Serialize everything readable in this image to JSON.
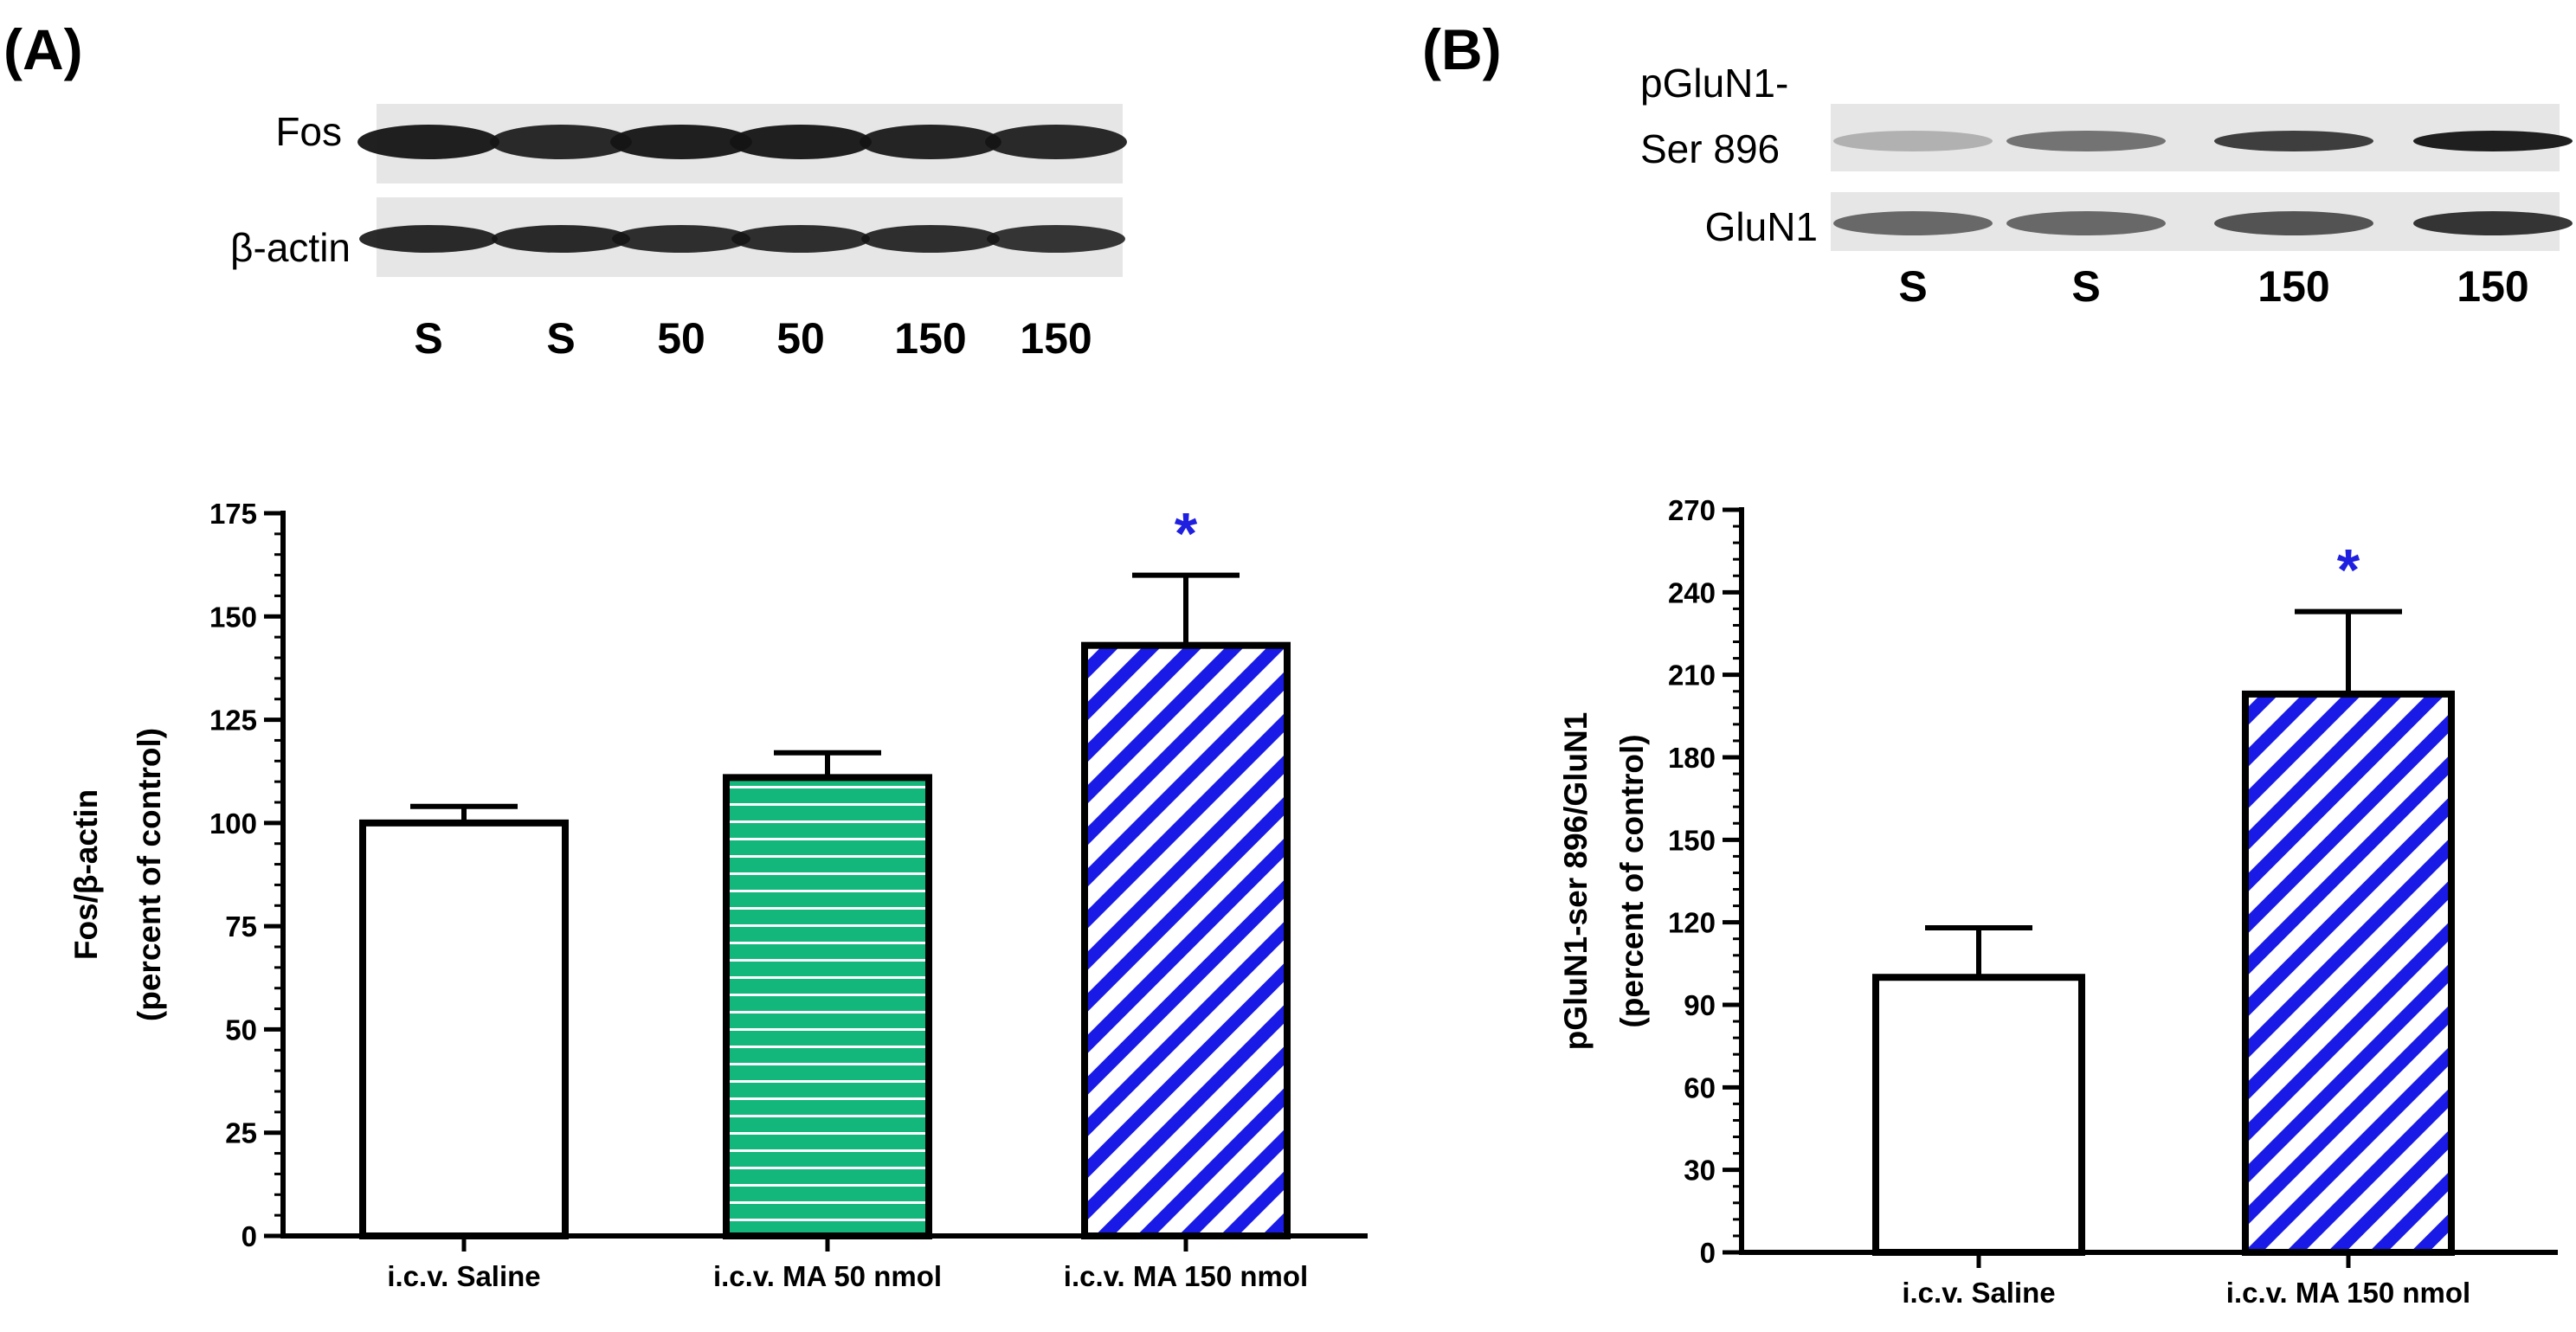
{
  "colors": {
    "axis": "#000000",
    "saline_fill": "#ffffff",
    "ma50_fill": "#13b77c",
    "ma50_stripe": "#ffffff",
    "ma150_fill": "#ffffff",
    "ma150_stripe": "#1a1ae6",
    "significance": "#1f1fe0",
    "blot_background": "#e6e6e6",
    "band": "#141414"
  },
  "panel_a": {
    "label": "(A)",
    "blot": {
      "rows": [
        {
          "label": "Fos",
          "icon": "fos-blot-row"
        },
        {
          "label": "β-actin",
          "icon": "beta-actin-blot-row"
        }
      ],
      "lanes": [
        "S",
        "S",
        "50",
        "50",
        "150",
        "150"
      ]
    }
  },
  "panel_b": {
    "label": "(B)",
    "blot": {
      "rows": [
        {
          "label_line1": "pGluN1-",
          "label_line2": "Ser 896",
          "icon": "pglun1-blot-row"
        },
        {
          "label": "GluN1",
          "icon": "glun1-blot-row"
        }
      ],
      "lanes": [
        "S",
        "S",
        "150",
        "150"
      ]
    }
  },
  "chart_data": [
    {
      "type": "bar",
      "title": "",
      "xlabel": "",
      "ylabel_line1": "Fos/β-actin",
      "ylabel_line2": "(percent of control)",
      "ylim": [
        0,
        175
      ],
      "yticks": [
        0,
        25,
        50,
        75,
        100,
        125,
        150,
        175
      ],
      "categories": [
        "i.c.v. Saline",
        "i.c.v. MA 50 nmol",
        "i.c.v. MA 150 nmol"
      ],
      "values": [
        100,
        111,
        143
      ],
      "errors": [
        4,
        6,
        17
      ],
      "fills": [
        "plain",
        "horizontal-stripes",
        "diagonal-stripes"
      ],
      "significance": [
        "",
        "",
        "*"
      ]
    },
    {
      "type": "bar",
      "title": "",
      "xlabel": "",
      "ylabel_line1": "pGluN1-ser 896/GluN1",
      "ylabel_line2": "(percent of control)",
      "ylim": [
        0,
        270
      ],
      "yticks": [
        0,
        30,
        60,
        90,
        120,
        150,
        180,
        210,
        240,
        270
      ],
      "categories": [
        "i.c.v. Saline",
        "i.c.v. MA 150 nmol"
      ],
      "values": [
        100,
        203
      ],
      "errors": [
        18,
        30
      ],
      "fills": [
        "plain",
        "diagonal-stripes"
      ],
      "significance": [
        "",
        "*"
      ]
    }
  ]
}
